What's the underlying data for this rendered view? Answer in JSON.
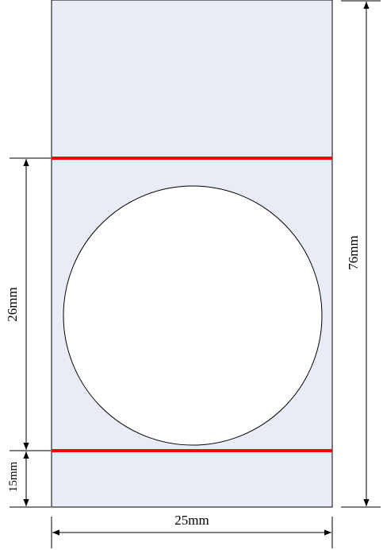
{
  "dimensions": {
    "total_height": "76mm",
    "middle_height": "26mm",
    "bottom_height": "15mm",
    "width": "25mm"
  },
  "colors": {
    "panel_fill": "#e7ecf7",
    "panel_stroke": "#000000",
    "red_line": "#ff0000",
    "circle_fill": "#ffffff"
  }
}
